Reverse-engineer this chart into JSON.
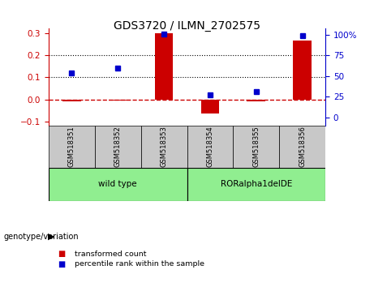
{
  "title": "GDS3720 / ILMN_2702575",
  "samples": [
    "GSM518351",
    "GSM518352",
    "GSM518353",
    "GSM518354",
    "GSM518355",
    "GSM518356"
  ],
  "transformed_count": [
    -0.01,
    -0.005,
    0.3,
    -0.065,
    -0.01,
    0.265
  ],
  "percentile_rank_left": [
    0.12,
    0.14,
    0.295,
    0.02,
    0.035,
    0.29
  ],
  "ylim_left": [
    -0.12,
    0.32
  ],
  "ylim_right": [
    -10,
    107
  ],
  "yticks_left": [
    -0.1,
    0.0,
    0.1,
    0.2,
    0.3
  ],
  "yticks_right": [
    0,
    25,
    50,
    75,
    100
  ],
  "legend_items": [
    {
      "label": "transformed count",
      "color": "#CC0000"
    },
    {
      "label": "percentile rank within the sample",
      "color": "#0000CC"
    }
  ],
  "bar_color": "#CC0000",
  "dot_color": "#0000CC",
  "hline_color": "#CC0000",
  "left_tick_color": "#CC0000",
  "right_tick_color": "#0000CC",
  "background_color": "#ffffff",
  "plot_bg_color": "#ffffff",
  "bar_width": 0.4,
  "group_label": "genotype/variation",
  "group1_label": "wild type",
  "group2_label": "RORalpha1delDE",
  "group_color": "#90EE90",
  "sample_bg_color": "#C8C8C8"
}
